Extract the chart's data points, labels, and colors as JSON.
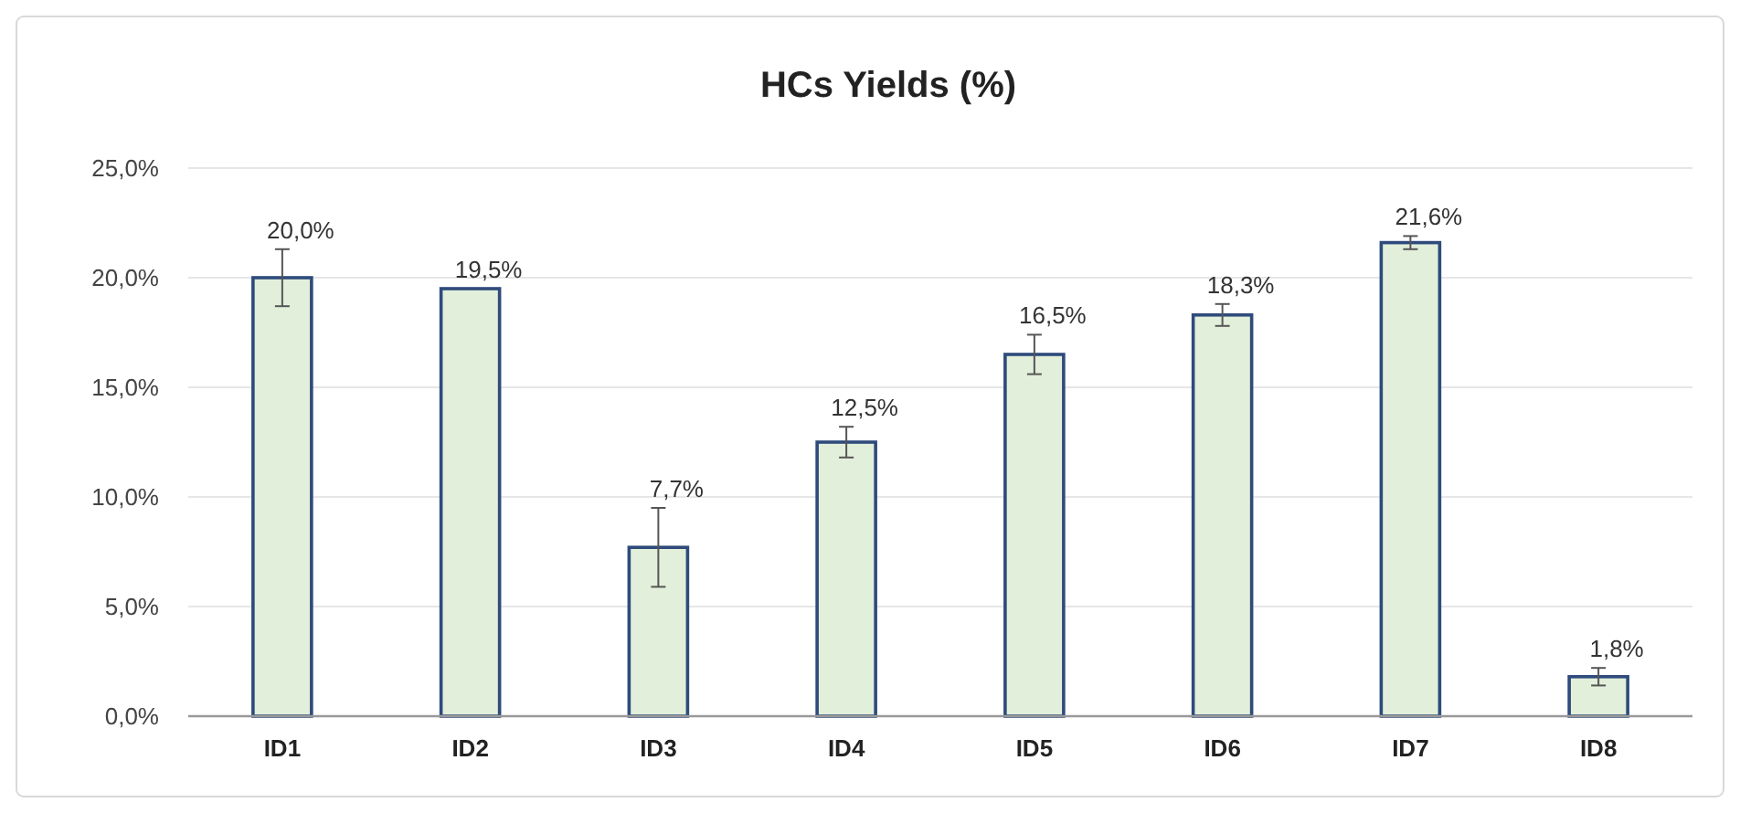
{
  "chart_data": {
    "type": "bar",
    "title": "HCs Yields (%)",
    "categories": [
      "ID1",
      "ID2",
      "ID3",
      "ID4",
      "ID5",
      "ID6",
      "ID7",
      "ID8"
    ],
    "values": [
      20.0,
      19.5,
      7.7,
      12.5,
      16.5,
      18.3,
      21.6,
      1.8
    ],
    "errors": [
      1.3,
      null,
      1.8,
      0.7,
      0.9,
      0.5,
      0.3,
      0.4
    ],
    "value_labels": [
      "20,0%",
      "19,5%",
      "7,7%",
      "12,5%",
      "16,5%",
      "18,3%",
      "21,6%",
      "1,8%"
    ],
    "color": "#e2efda",
    "ylim": [
      0,
      25
    ],
    "yticks": [
      {
        "value": 0,
        "label": "0,0%"
      },
      {
        "value": 5,
        "label": "5,0%"
      },
      {
        "value": 10,
        "label": "10,0%"
      },
      {
        "value": 15,
        "label": "15,0%"
      },
      {
        "value": 20,
        "label": "20,0%"
      },
      {
        "value": 25,
        "label": "25,0%"
      }
    ],
    "grid": "y"
  }
}
